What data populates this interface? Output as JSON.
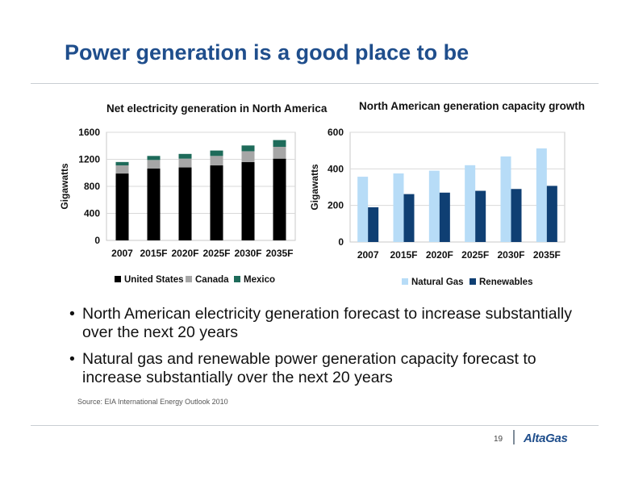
{
  "slide": {
    "title": "Power generation is a good place to be",
    "bullets": [
      "North American electricity generation forecast to increase substantially over the next 20 years",
      "Natural gas and renewable power generation capacity forecast to increase substantially over the next 20 years"
    ],
    "source": "Source: EIA International Energy Outlook 2010",
    "page_number": "19",
    "logo": "AltaGas"
  },
  "chart_data": [
    {
      "type": "bar",
      "stacked": true,
      "title": "Net electricity generation in North America",
      "ylabel": "Gigawatts",
      "xlabel": "",
      "ylim": [
        0,
        1600
      ],
      "yticks": [
        0,
        400,
        800,
        1200,
        1600
      ],
      "grid": true,
      "legend_position": "bottom",
      "categories": [
        "2007",
        "2015F",
        "2020F",
        "2025F",
        "2030F",
        "2035F"
      ],
      "series": [
        {
          "name": "United States",
          "color": "#000000",
          "values": [
            990,
            1065,
            1080,
            1110,
            1160,
            1210
          ]
        },
        {
          "name": "Canada",
          "color": "#a6a6a6",
          "values": [
            120,
            125,
            130,
            140,
            160,
            175
          ]
        },
        {
          "name": "Mexico",
          "color": "#1e6b5a",
          "values": [
            50,
            60,
            70,
            80,
            85,
            100
          ]
        }
      ]
    },
    {
      "type": "bar",
      "title": "North American generation capacity growth",
      "ylabel": "Gigawatts",
      "xlabel": "",
      "ylim": [
        0,
        600
      ],
      "yticks": [
        0,
        200,
        400,
        600
      ],
      "grid": true,
      "legend_position": "bottom",
      "categories": [
        "2007",
        "2015F",
        "2020F",
        "2025F",
        "2030F",
        "2035F"
      ],
      "series": [
        {
          "name": "Natural Gas",
          "color": "#b7dcf7",
          "values": [
            357,
            375,
            390,
            420,
            468,
            512
          ]
        },
        {
          "name": "Renewables",
          "color": "#0f3f73",
          "values": [
            190,
            262,
            270,
            280,
            290,
            307
          ]
        }
      ]
    }
  ]
}
